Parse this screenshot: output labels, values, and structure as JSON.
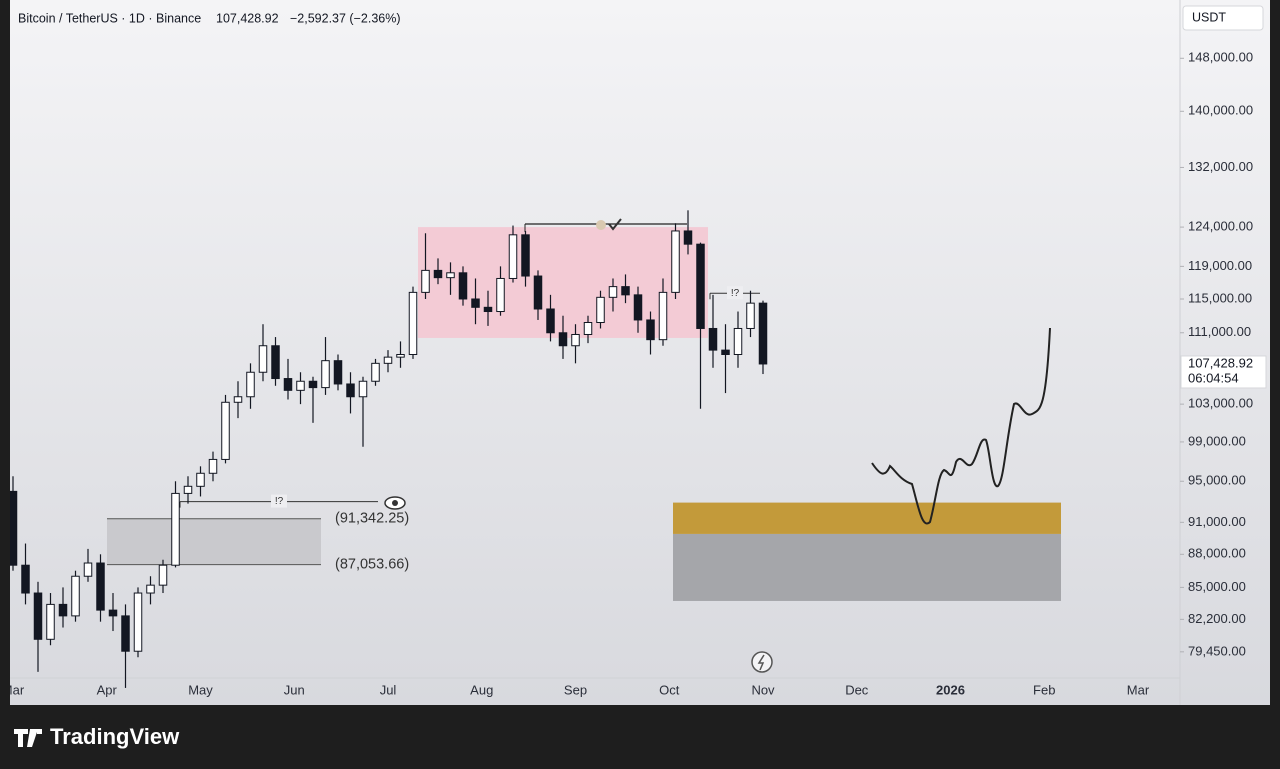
{
  "header": {
    "symbol": "Bitcoin / TetherUS · 1D · Binance",
    "price": "107,428.92",
    "change": "−2,592.37 (−2.36%)",
    "currency": "USDT"
  },
  "footer": {
    "brand": "TradingView"
  },
  "chart_data": {
    "type": "candlestick",
    "y_scale": "log",
    "categories": [
      "Mar",
      "Apr",
      "May",
      "Jun",
      "Jul",
      "Aug",
      "Sep",
      "Oct",
      "Nov",
      "Dec",
      "2026",
      "Feb",
      "Mar"
    ],
    "ylim": [
      77300,
      156500
    ],
    "yticks": [
      {
        "value": 148000,
        "label": "148,000.00"
      },
      {
        "value": 140000,
        "label": "140,000.00"
      },
      {
        "value": 132000,
        "label": "132,000.00"
      },
      {
        "value": 124000,
        "label": "124,000.00"
      },
      {
        "value": 119000,
        "label": "119,000.00"
      },
      {
        "value": 115000,
        "label": "115,000.00"
      },
      {
        "value": 111000,
        "label": "111,000.00"
      },
      {
        "value": 103000,
        "label": "103,000.00"
      },
      {
        "value": 99000,
        "label": "99,000.00"
      },
      {
        "value": 95000,
        "label": "95,000.00"
      },
      {
        "value": 91000,
        "label": "91,000.00"
      },
      {
        "value": 88000,
        "label": "88,000.00"
      },
      {
        "value": 85000,
        "label": "85,000.00"
      },
      {
        "value": 82200,
        "label": "82,200.00"
      },
      {
        "value": 79450,
        "label": "79,450.00"
      }
    ],
    "up_color": "#ffffff",
    "down_color": "#131722",
    "wick_color": "#131722",
    "ohlc": [
      [
        94000,
        95500,
        86500,
        87000
      ],
      [
        87000,
        89000,
        83500,
        84500
      ],
      [
        84500,
        85500,
        77800,
        80500
      ],
      [
        80500,
        84500,
        80000,
        83500
      ],
      [
        83500,
        85000,
        81500,
        82500
      ],
      [
        82500,
        86500,
        82000,
        86000
      ],
      [
        86000,
        88500,
        85500,
        87200
      ],
      [
        87200,
        88000,
        82000,
        83000
      ],
      [
        83000,
        84500,
        81200,
        82500
      ],
      [
        82500,
        83500,
        76500,
        79500
      ],
      [
        79500,
        85000,
        79000,
        84500
      ],
      [
        84500,
        86000,
        83500,
        85200
      ],
      [
        85200,
        87500,
        84500,
        87000
      ],
      [
        87000,
        95000,
        86800,
        93800
      ],
      [
        93800,
        95500,
        92800,
        94500
      ],
      [
        94500,
        96500,
        93500,
        95800
      ],
      [
        95800,
        98000,
        95000,
        97200
      ],
      [
        97200,
        104000,
        96800,
        103200
      ],
      [
        103200,
        105500,
        101500,
        103800
      ],
      [
        103800,
        107500,
        102500,
        106500
      ],
      [
        106500,
        112000,
        105500,
        109500
      ],
      [
        109500,
        110500,
        105000,
        105800
      ],
      [
        105800,
        108000,
        103500,
        104500
      ],
      [
        104500,
        106500,
        103000,
        105500
      ],
      [
        105500,
        106000,
        101000,
        104800
      ],
      [
        104800,
        110500,
        104000,
        107800
      ],
      [
        107800,
        108500,
        104500,
        105200
      ],
      [
        105200,
        106500,
        102000,
        103800
      ],
      [
        103800,
        106000,
        98500,
        105500
      ],
      [
        105500,
        108000,
        105000,
        107500
      ],
      [
        107500,
        109000,
        106500,
        108200
      ],
      [
        108200,
        110000,
        107000,
        108500
      ],
      [
        108500,
        116500,
        108000,
        115800
      ],
      [
        115800,
        123200,
        115000,
        118500
      ],
      [
        118500,
        120000,
        116800,
        117600
      ],
      [
        117600,
        119500,
        115500,
        118200
      ],
      [
        118200,
        119000,
        114200,
        115000
      ],
      [
        115000,
        117500,
        112000,
        114000
      ],
      [
        114000,
        116000,
        111800,
        113500
      ],
      [
        113500,
        119000,
        113000,
        117500
      ],
      [
        117500,
        124200,
        117000,
        123000
      ],
      [
        123000,
        123500,
        116500,
        117800
      ],
      [
        117800,
        118500,
        112500,
        113800
      ],
      [
        113800,
        115500,
        110000,
        111000
      ],
      [
        111000,
        113000,
        108000,
        109500
      ],
      [
        109500,
        112000,
        107500,
        110800
      ],
      [
        110800,
        113000,
        109800,
        112200
      ],
      [
        112200,
        116000,
        111500,
        115200
      ],
      [
        115200,
        117500,
        113500,
        116500
      ],
      [
        116500,
        118000,
        114500,
        115500
      ],
      [
        115500,
        116500,
        111000,
        112500
      ],
      [
        112500,
        113500,
        108500,
        110200
      ],
      [
        110200,
        117500,
        109500,
        115800
      ],
      [
        115800,
        124500,
        115000,
        123500
      ],
      [
        123500,
        126200,
        120500,
        121800
      ],
      [
        121800,
        122000,
        102500,
        111500
      ],
      [
        111500,
        115500,
        107000,
        109000
      ],
      [
        109000,
        112000,
        104200,
        108500
      ],
      [
        108500,
        113500,
        107000,
        111500
      ],
      [
        111500,
        116000,
        110500,
        114500
      ],
      [
        114500,
        114800,
        106300,
        107428.92
      ]
    ],
    "zones": [
      {
        "ylim": [
          110400,
          124000
        ],
        "color": "#f3cbd5"
      },
      {
        "ylim": [
          87053.66,
          91342.25
        ],
        "color": "#c9c9cd"
      },
      {
        "ylim": [
          89900,
          92900
        ],
        "color": "#c39a3a"
      },
      {
        "ylim": [
          83800,
          89900
        ],
        "color": "#a5a6aa"
      }
    ],
    "levels": [
      {
        "value": 91342.25,
        "label": "(91,342.25)"
      },
      {
        "value": 87053.66,
        "label": "(87,053.66)"
      }
    ],
    "annotations": [
      {
        "value": 93000,
        "label": "!?"
      },
      {
        "value": 115700,
        "label": "!?"
      }
    ],
    "last_price": {
      "value": 107428.92,
      "label": "107,428.92",
      "countdown": "06:04:54"
    }
  }
}
